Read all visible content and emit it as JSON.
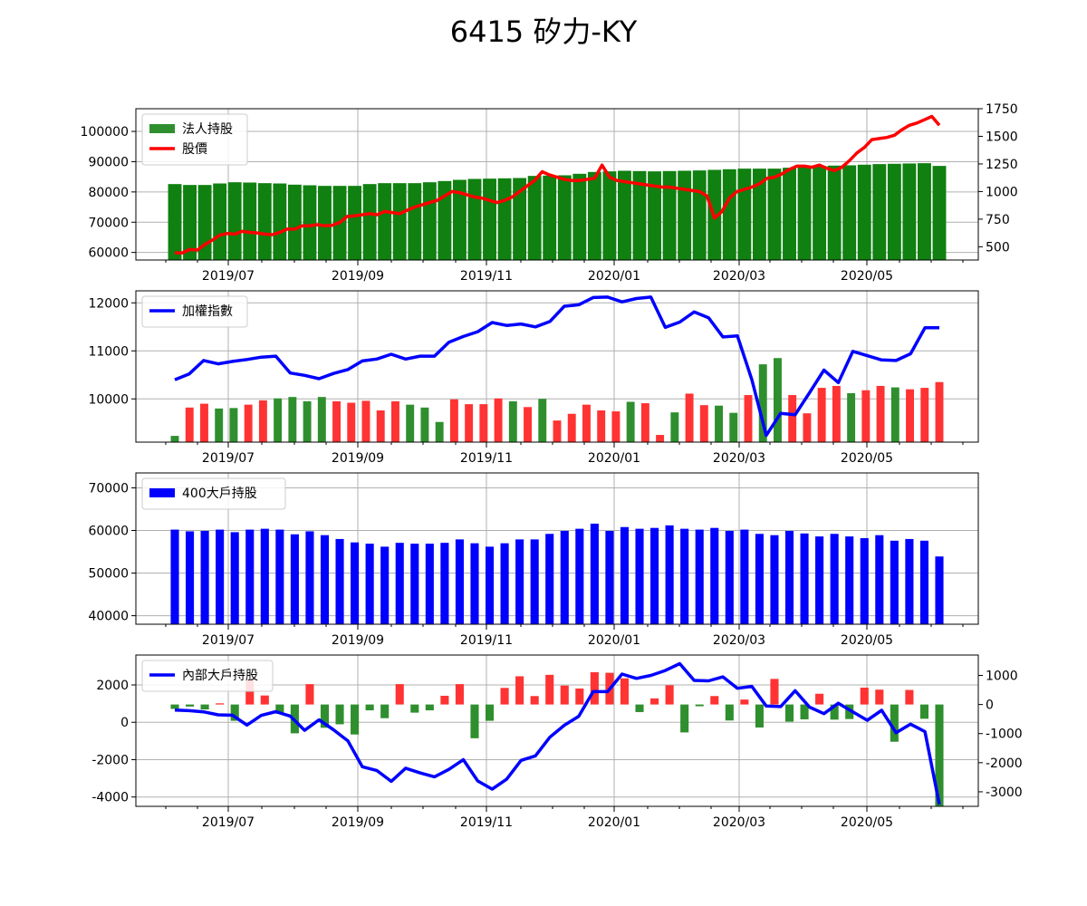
{
  "title": "6415 矽力-KY",
  "x_labels": [
    "2019/07",
    "2019/09",
    "2019/11",
    "2020/01",
    "2020/03",
    "2020/05"
  ],
  "colors": {
    "green": "#2f8f2f",
    "red": "#ff3333",
    "blue": "#0000ff",
    "price_line": "#ff0000",
    "grid": "#b0b0b0"
  },
  "chart_data": [
    {
      "type": "bar+line",
      "legend": [
        "法人持股",
        "股價"
      ],
      "legend_position": "top-left",
      "ylim_left": [
        57500,
        107500
      ],
      "ylim_right": [
        380,
        1750
      ],
      "yticks_left": [
        "60000",
        "70000",
        "80000",
        "90000",
        "100000"
      ],
      "yticks_right": [
        "500",
        "750",
        "1000",
        "1250",
        "1500",
        "1750"
      ],
      "series": [
        {
          "name": "法人持股",
          "type": "bar",
          "values": [
            82600,
            82300,
            82300,
            82800,
            83200,
            83100,
            82900,
            82800,
            82400,
            82200,
            82000,
            82000,
            82000,
            82600,
            82900,
            82900,
            82900,
            83200,
            83600,
            84000,
            84300,
            84400,
            84500,
            84600,
            85300,
            85400,
            85500,
            86000,
            86600,
            86800,
            87000,
            86900,
            86800,
            86900,
            87000,
            87100,
            87300,
            87500,
            87700,
            87700,
            87700,
            88000,
            88300,
            88600,
            88700,
            88800,
            89000,
            89200,
            89300,
            89400,
            89500,
            88600
          ]
        },
        {
          "name": "股價",
          "type": "line",
          "values": [
            445,
            445,
            475,
            470,
            520,
            560,
            605,
            620,
            615,
            640,
            630,
            625,
            615,
            610,
            630,
            660,
            660,
            690,
            690,
            700,
            690,
            695,
            720,
            775,
            780,
            790,
            800,
            790,
            820,
            810,
            800,
            830,
            860,
            880,
            900,
            920,
            960,
            1000,
            990,
            970,
            950,
            940,
            920,
            900,
            920,
            950,
            1000,
            1050,
            1100,
            1180,
            1150,
            1130,
            1110,
            1100,
            1100,
            1110,
            1120,
            1240,
            1130,
            1100,
            1090,
            1080,
            1070,
            1060,
            1050,
            1040,
            1040,
            1030,
            1020,
            1010,
            1000,
            960,
            760,
            820,
            940,
            1000,
            1020,
            1040,
            1070,
            1120,
            1130,
            1160,
            1200,
            1230,
            1230,
            1220,
            1240,
            1210,
            1190,
            1220,
            1280,
            1350,
            1400,
            1470,
            1480,
            1490,
            1510,
            1560,
            1600,
            1620,
            1650,
            1680,
            1600
          ]
        }
      ]
    },
    {
      "type": "bar+line",
      "legend": [
        "加權指數"
      ],
      "legend_position": "top-left",
      "ylim": [
        9100,
        12250
      ],
      "yticks": [
        "10000",
        "11000",
        "12000"
      ],
      "series": [
        {
          "name": "加權指數",
          "type": "line",
          "values": [
            10400,
            10520,
            10800,
            10730,
            10780,
            10820,
            10870,
            10890,
            10540,
            10490,
            10420,
            10530,
            10610,
            10790,
            10830,
            10930,
            10830,
            10890,
            10890,
            11180,
            11300,
            11400,
            11590,
            11530,
            11560,
            11500,
            11610,
            11930,
            11960,
            12110,
            12120,
            12020,
            12090,
            12120,
            11490,
            11600,
            11810,
            11690,
            11290,
            11310,
            10400,
            9240,
            9700,
            9670,
            10130,
            10600,
            10340,
            10990,
            10900,
            10810,
            10800,
            10940,
            11480,
            11480
          ]
        },
        {
          "name": "bars",
          "type": "bar",
          "values": [
            9230,
            9820,
            9900,
            9800,
            9810,
            9880,
            9970,
            10010,
            10040,
            9950,
            10040,
            9950,
            9920,
            9960,
            9760,
            9950,
            9880,
            9820,
            9520,
            9990,
            9890,
            9890,
            10010,
            9950,
            9830,
            10000,
            9550,
            9690,
            9880,
            9760,
            9740,
            9940,
            9910,
            9250,
            9720,
            10110,
            9870,
            9860,
            9710,
            10080,
            10720,
            10850,
            10080,
            9700,
            10230,
            10270,
            10120,
            10180,
            10270,
            10240,
            10200,
            10230,
            10350
          ],
          "colors": [
            "g",
            "r",
            "r",
            "g",
            "g",
            "r",
            "r",
            "g",
            "g",
            "g",
            "g",
            "r",
            "r",
            "r",
            "r",
            "r",
            "g",
            "g",
            "g",
            "r",
            "r",
            "r",
            "r",
            "g",
            "r",
            "g",
            "r",
            "r",
            "r",
            "r",
            "r",
            "g",
            "r",
            "r",
            "g",
            "r",
            "r",
            "g",
            "g",
            "r",
            "g",
            "g",
            "r",
            "r",
            "r",
            "r",
            "g",
            "r",
            "r",
            "g",
            "r",
            "r",
            "r"
          ]
        }
      ]
    },
    {
      "type": "bar",
      "legend": [
        "400大戶持股"
      ],
      "legend_position": "top-left",
      "ylim": [
        38000,
        73500
      ],
      "yticks": [
        "40000",
        "50000",
        "60000",
        "70000"
      ],
      "series": [
        {
          "name": "400大戶持股",
          "type": "bar",
          "values": [
            60200,
            59800,
            59900,
            60200,
            59600,
            60200,
            60400,
            60200,
            59100,
            59800,
            58900,
            58000,
            57200,
            56900,
            56200,
            57100,
            56900,
            56900,
            57100,
            57900,
            57000,
            56200,
            57000,
            57900,
            57900,
            59200,
            59900,
            60400,
            61600,
            59900,
            60800,
            60400,
            60600,
            61200,
            60400,
            60200,
            60600,
            59900,
            60200,
            59200,
            58900,
            59900,
            59300,
            58600,
            59200,
            58600,
            58200,
            58900,
            57600,
            58000,
            57600,
            53900
          ]
        }
      ]
    },
    {
      "type": "bar+line",
      "legend": [
        "內部大戶持股"
      ],
      "legend_position": "top-left",
      "ylim_left": [
        -4500,
        3600
      ],
      "ylim_right": [
        -3500,
        1700
      ],
      "yticks_left": [
        "-4000",
        "-2000",
        "0",
        "2000"
      ],
      "yticks_right": [
        "-3000",
        "-2000",
        "-1000",
        "0",
        "1000"
      ],
      "series": [
        {
          "name": "內部大戶持股",
          "type": "line",
          "values": [
            650,
            620,
            560,
            400,
            380,
            -150,
            370,
            570,
            330,
            -430,
            130,
            -400,
            -1000,
            -2380,
            -2580,
            -3160,
            -2460,
            -2710,
            -2920,
            -2520,
            -2000,
            -3140,
            -3580,
            -3050,
            -2040,
            -1800,
            -800,
            -160,
            320,
            1640,
            1640,
            2580,
            2350,
            2510,
            2770,
            3140,
            2240,
            2220,
            2430,
            1820,
            1920,
            870,
            840,
            1690,
            810,
            460,
            1020,
            560,
            110,
            640,
            -560,
            -100,
            -500,
            -4400
          ]
        },
        {
          "name": "bars",
          "type": "bar",
          "values": [
            -150,
            -70,
            -170,
            40,
            -560,
            880,
            310,
            -320,
            -990,
            700,
            -800,
            -680,
            -1030,
            -200,
            -470,
            700,
            -280,
            -200,
            300,
            700,
            -1160,
            -560,
            570,
            970,
            290,
            1020,
            650,
            550,
            1110,
            1090,
            900,
            -260,
            210,
            660,
            -960,
            -60,
            290,
            -550,
            170,
            -790,
            880,
            -590,
            -510,
            370,
            -520,
            -500,
            580,
            510,
            -1280,
            500,
            -490,
            -3900
          ],
          "colors": [
            "g",
            "g",
            "g",
            "r",
            "g",
            "r",
            "r",
            "g",
            "g",
            "r",
            "g",
            "g",
            "g",
            "g",
            "g",
            "r",
            "g",
            "g",
            "r",
            "r",
            "g",
            "g",
            "r",
            "r",
            "r",
            "r",
            "r",
            "r",
            "r",
            "r",
            "r",
            "g",
            "r",
            "r",
            "g",
            "g",
            "r",
            "g",
            "r",
            "g",
            "r",
            "g",
            "g",
            "r",
            "g",
            "g",
            "r",
            "r",
            "g",
            "r",
            "g",
            "g"
          ]
        }
      ]
    }
  ]
}
